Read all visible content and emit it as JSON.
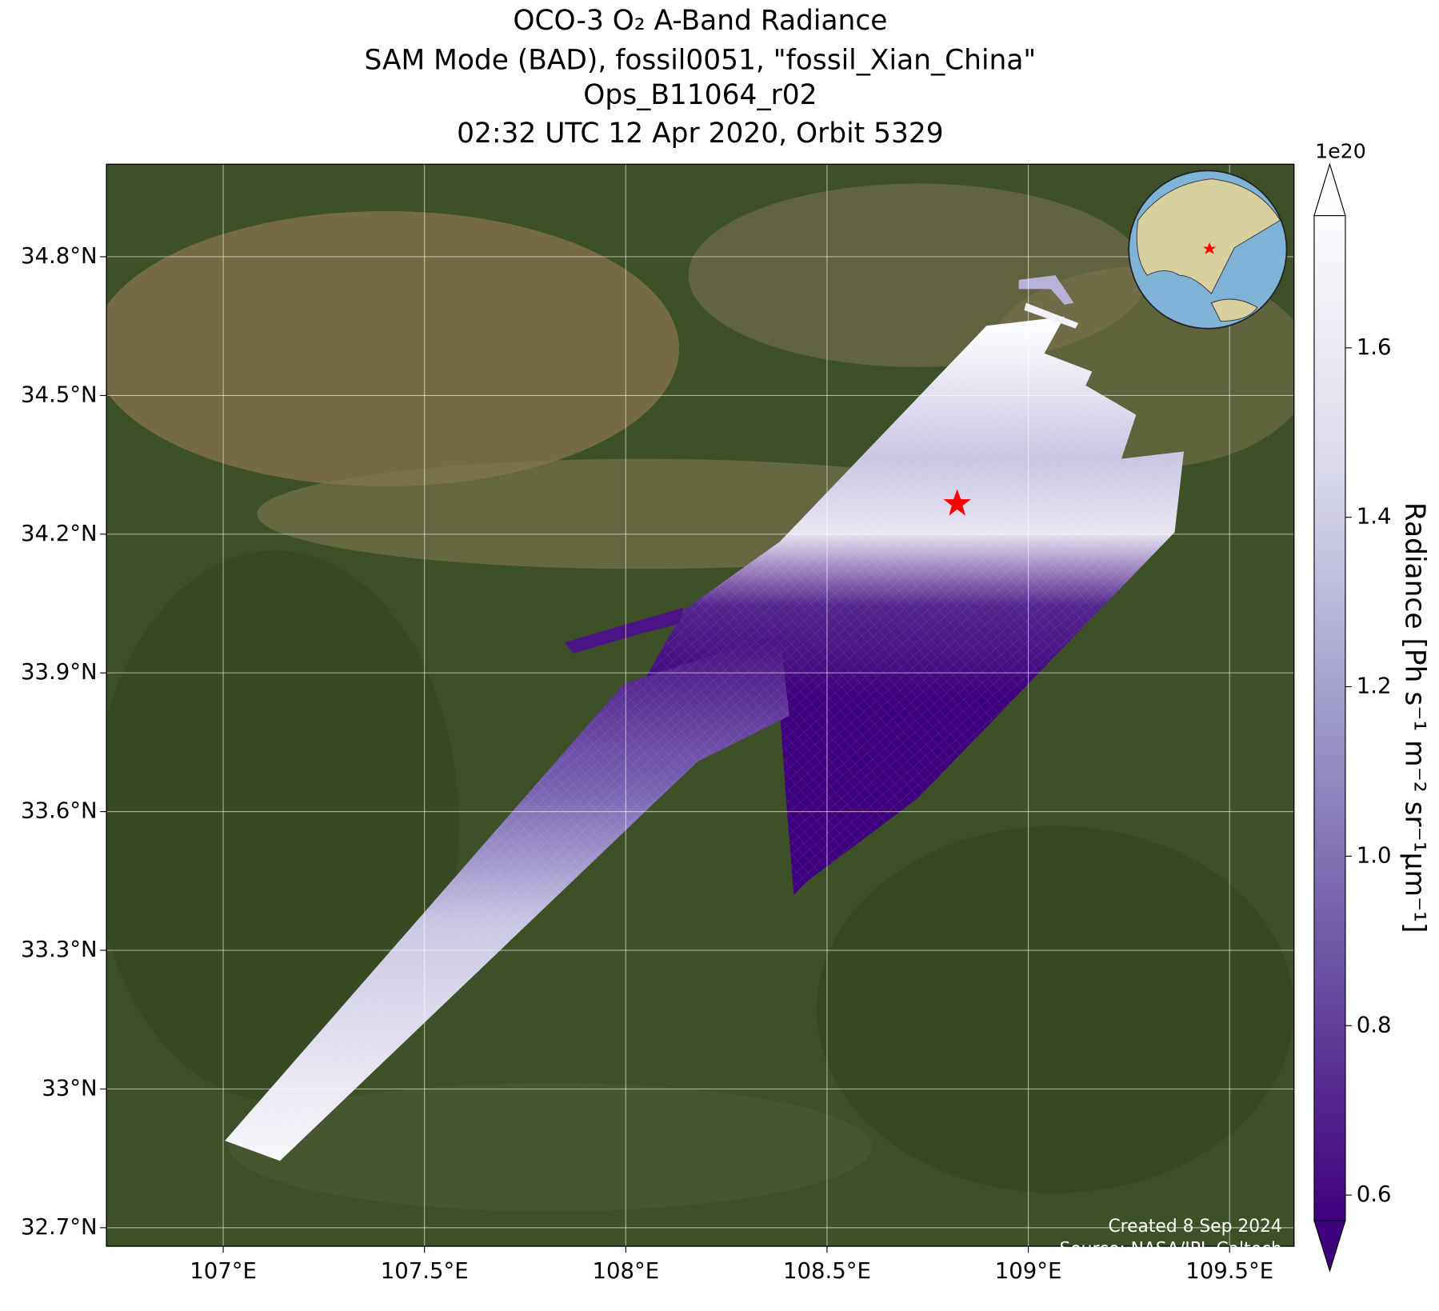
{
  "title_lines": [
    "OCO-3 O₂ A-Band Radiance",
    "SAM Mode (BAD), fossil0051, \"fossil_Xian_China\"",
    "Ops_B11064_r02",
    "02:32 UTC 12 Apr 2020, Orbit 5329"
  ],
  "map": {
    "xlim": [
      106.71,
      109.66
    ],
    "ylim": [
      32.66,
      35.0
    ],
    "xticks": [
      {
        "value": 107,
        "label": "107°E"
      },
      {
        "value": 107.5,
        "label": "107.5°E"
      },
      {
        "value": 108,
        "label": "108°E"
      },
      {
        "value": 108.5,
        "label": "108.5°E"
      },
      {
        "value": 109,
        "label": "109°E"
      },
      {
        "value": 109.5,
        "label": "109.5°E"
      }
    ],
    "yticks": [
      {
        "value": 32.7,
        "label": "32.7°N"
      },
      {
        "value": 33,
        "label": "33°N"
      },
      {
        "value": 33.3,
        "label": "33.3°N"
      },
      {
        "value": 33.6,
        "label": "33.6°N"
      },
      {
        "value": 33.9,
        "label": "33.9°N"
      },
      {
        "value": 34.2,
        "label": "34.2°N"
      },
      {
        "value": 34.5,
        "label": "34.5°N"
      },
      {
        "value": 34.8,
        "label": "34.8°N"
      }
    ],
    "grid": true
  },
  "colorbar": {
    "label": "Radiance [Ph s⁻¹ m⁻² sr⁻¹μm⁻¹]",
    "offset_label": "1e20",
    "lim": [
      0.57,
      1.756
    ],
    "ticks": [
      0.6,
      0.8,
      {
        "value": 1.0,
        "label": "1.0"
      },
      1.2,
      1.4,
      1.6
    ],
    "colors": [
      "#3f007d",
      "#6a51a3",
      "#9e9ac8",
      "#dadaeb",
      "#fcfbfd"
    ]
  },
  "credits": [
    "Created 8 Sep 2024",
    "Source: NASA/JPL-Caltech"
  ]
}
